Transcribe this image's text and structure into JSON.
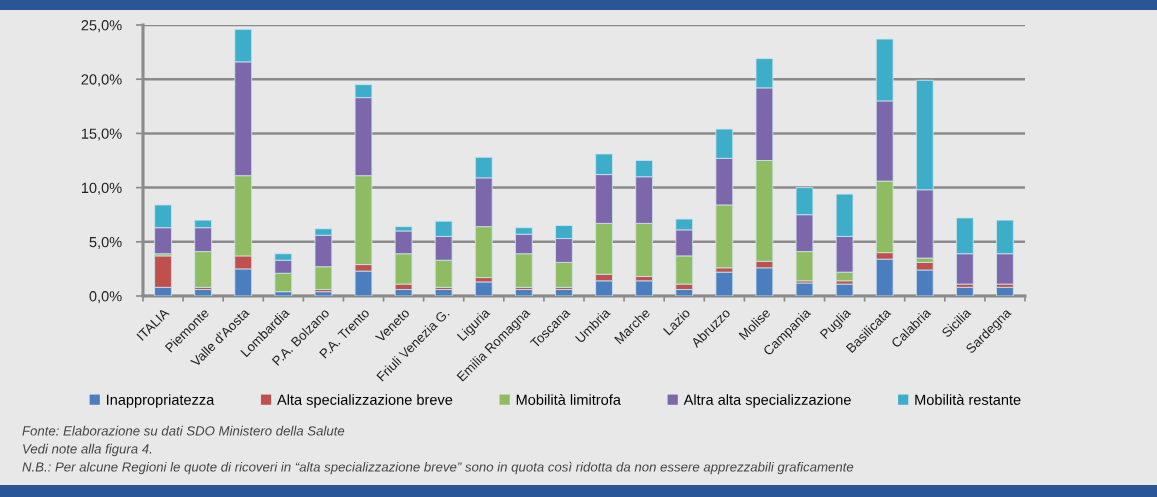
{
  "chart_data": {
    "type": "bar",
    "stacked": true,
    "categories": [
      "ITALIA",
      "Piemonte",
      "Valle d'Aosta",
      "Lombardia",
      "P.A. Bolzano",
      "P.A. Trento",
      "Veneto",
      "Friuli Venezia G.",
      "Liguria",
      "Emilia Romagna",
      "Toscana",
      "Umbria",
      "Marche",
      "Lazio",
      "Abruzzo",
      "Molise",
      "Campania",
      "Puglia",
      "Basilicata",
      "Calabria",
      "Sicilia",
      "Sardegna"
    ],
    "series": [
      {
        "name": "Inappropriatezza",
        "color": "#4a7ebf",
        "values": [
          0.8,
          0.6,
          2.5,
          0.4,
          0.4,
          2.3,
          0.6,
          0.6,
          1.3,
          0.6,
          0.6,
          1.4,
          1.4,
          0.6,
          2.2,
          2.6,
          1.2,
          1.1,
          3.4,
          2.4,
          0.8,
          0.8
        ]
      },
      {
        "name": "Alta specializzazione breve",
        "color": "#c0504d",
        "values": [
          2.9,
          0.2,
          1.2,
          0.0,
          0.2,
          0.6,
          0.5,
          0.2,
          0.4,
          0.2,
          0.2,
          0.6,
          0.4,
          0.5,
          0.4,
          0.6,
          0.2,
          0.3,
          0.6,
          0.7,
          0.3,
          0.3
        ]
      },
      {
        "name": "Mobilità limitrofa",
        "color": "#8fbc63",
        "values": [
          0.2,
          3.3,
          7.4,
          1.7,
          2.1,
          8.2,
          2.8,
          2.5,
          4.7,
          3.1,
          2.3,
          4.7,
          4.9,
          2.6,
          5.8,
          9.3,
          2.7,
          0.8,
          6.6,
          0.4,
          0.0,
          0.0
        ]
      },
      {
        "name": "Altra alta specializzazione",
        "color": "#7b67aa",
        "values": [
          2.4,
          2.2,
          10.5,
          1.2,
          2.9,
          7.2,
          2.1,
          2.2,
          4.5,
          1.8,
          2.2,
          4.5,
          4.3,
          2.4,
          4.3,
          6.7,
          3.4,
          3.3,
          7.4,
          6.3,
          2.8,
          2.8
        ]
      },
      {
        "name": "Mobilità restante",
        "color": "#3caec9",
        "values": [
          2.1,
          0.7,
          3.0,
          0.6,
          0.6,
          1.2,
          0.4,
          1.4,
          1.9,
          0.6,
          1.2,
          1.9,
          1.5,
          1.0,
          2.7,
          2.7,
          2.5,
          3.9,
          5.7,
          10.1,
          3.3,
          3.1
        ]
      }
    ],
    "ylim": [
      0,
      25
    ],
    "yticks": [
      {
        "value": 0,
        "label": "0,0%"
      },
      {
        "value": 5,
        "label": "5,0%"
      },
      {
        "value": 10,
        "label": "10,0%"
      },
      {
        "value": 15,
        "label": "15,0%"
      },
      {
        "value": 20,
        "label": "20,0%"
      },
      {
        "value": 25,
        "label": "25,0%"
      }
    ],
    "grid": "y",
    "legend": "bottom",
    "annotations": [
      "Fonte: Elaborazione su dati SDO Ministero della Salute",
      "Vedi note alla figura 4.",
      "N.B.: Per alcune Regioni le quote di ricoveri in “alta specializzazione breve” sono in quota così ridotta da non essere apprezzabili graficamente"
    ]
  }
}
